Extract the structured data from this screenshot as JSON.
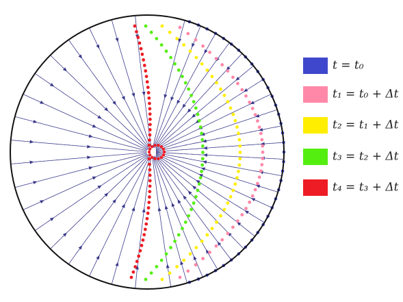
{
  "legend": {
    "items": [
      {
        "label": "t = t₀",
        "color": "#3f48cc"
      },
      {
        "label": "t₁ = t₀ + Δt",
        "color": "#ff88a8"
      },
      {
        "label": "t₂ = t₁ + Δt",
        "color": "#ffee00"
      },
      {
        "label": "t₃ = t₂ + Δt",
        "color": "#55ee11"
      },
      {
        "label": "t₄ = t₃ + Δt",
        "color": "#ee1c24"
      }
    ]
  }
}
